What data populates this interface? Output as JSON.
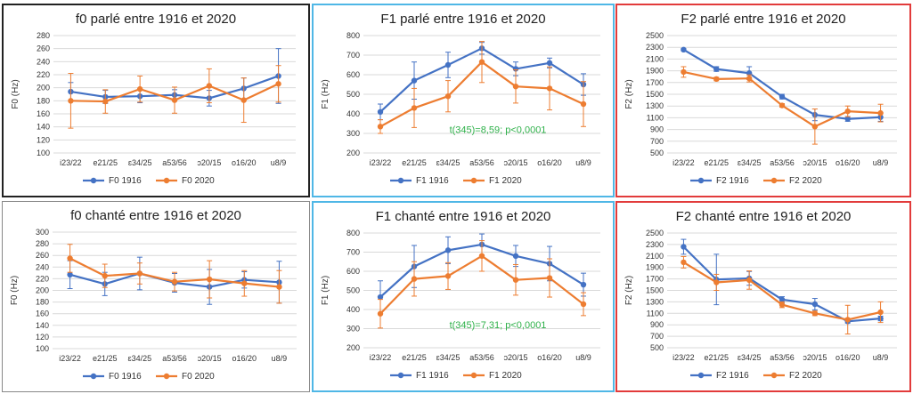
{
  "colors": {
    "series_1916": "#4472c4",
    "series_2020": "#ed7d31",
    "annotation": "#2fb14a",
    "grid": "#d9d9d9"
  },
  "chart_data": [
    {
      "type": "line",
      "title": "f0 parlé entre 1916 et 2020",
      "ylabel": "F0 (Hz)",
      "xlabel": "",
      "ylim": [
        100,
        280
      ],
      "yticks": [
        100,
        120,
        140,
        160,
        180,
        200,
        220,
        240,
        260,
        280
      ],
      "categories": [
        "i23/22",
        "e21/25",
        "ɛ34/25",
        "a53/56",
        "ɔ20/15",
        "o16/20",
        "u8/9"
      ],
      "grid": true,
      "legend": "bottom",
      "series": [
        {
          "name": "F0 1916",
          "values": [
            194,
            186,
            187,
            189,
            184,
            199,
            218
          ],
          "err": [
            14,
            10,
            10,
            8,
            12,
            16,
            42
          ]
        },
        {
          "name": "F0 2020",
          "values": [
            180,
            179,
            198,
            181,
            203,
            181,
            206
          ],
          "err": [
            42,
            18,
            20,
            20,
            26,
            34,
            28
          ]
        }
      ]
    },
    {
      "type": "line",
      "title": "F1 parlé entre 1916 et 2020",
      "ylabel": "F1 (Hz)",
      "xlabel": "",
      "ylim": [
        200,
        800
      ],
      "yticks": [
        200,
        300,
        400,
        500,
        600,
        700,
        800
      ],
      "categories": [
        "i23/22",
        "e21/25",
        "ɛ34/25",
        "a53/56",
        "ɔ20/15",
        "o16/20",
        "u8/9"
      ],
      "annotation": "t(345)=8,59; p<0,0001",
      "grid": true,
      "legend": "bottom",
      "series": [
        {
          "name": "F1 1916",
          "values": [
            410,
            570,
            650,
            735,
            630,
            660,
            550
          ],
          "err": [
            40,
            95,
            65,
            30,
            35,
            25,
            55
          ]
        },
        {
          "name": "F1 2020",
          "values": [
            335,
            430,
            490,
            665,
            540,
            530,
            450
          ],
          "err": [
            35,
            100,
            80,
            105,
            85,
            110,
            115
          ]
        }
      ]
    },
    {
      "type": "line",
      "title": "F2 parlé entre 1916 et 2020",
      "ylabel": "F2 (Hz)",
      "xlabel": "",
      "ylim": [
        500,
        2500
      ],
      "yticks": [
        500,
        700,
        900,
        1100,
        1300,
        1500,
        1700,
        1900,
        2100,
        2300,
        2500
      ],
      "categories": [
        "i23/22",
        "e21/25",
        "ɛ34/25",
        "a53/56",
        "ɔ20/15",
        "o16/20",
        "u8/9"
      ],
      "grid": true,
      "legend": "bottom",
      "series": [
        {
          "name": "F2 1916",
          "values": [
            2260,
            1930,
            1860,
            1460,
            1150,
            1080,
            1110
          ],
          "err": [
            20,
            40,
            110,
            40,
            100,
            40,
            70
          ]
        },
        {
          "name": "F2 2020",
          "values": [
            1880,
            1760,
            1770,
            1310,
            950,
            1210,
            1180
          ],
          "err": [
            90,
            30,
            60,
            30,
            300,
            90,
            150
          ]
        }
      ]
    },
    {
      "type": "line",
      "title": "f0 chanté entre 1916 et 2020",
      "ylabel": "F0 (Hz)",
      "xlabel": "",
      "ylim": [
        100,
        300
      ],
      "yticks": [
        100,
        120,
        140,
        160,
        180,
        200,
        220,
        240,
        260,
        280,
        300
      ],
      "categories": [
        "i23/22",
        "e21/25",
        "ɛ34/25",
        "a53/56",
        "ɔ20/15",
        "o16/20",
        "u8/9"
      ],
      "grid": true,
      "legend": "bottom",
      "series": [
        {
          "name": "F0 1916",
          "values": [
            227,
            211,
            229,
            213,
            206,
            218,
            214
          ],
          "err": [
            24,
            20,
            28,
            16,
            30,
            14,
            36
          ]
        },
        {
          "name": "F0 2020",
          "values": [
            255,
            225,
            229,
            215,
            219,
            212,
            206
          ],
          "err": [
            24,
            20,
            18,
            16,
            32,
            22,
            28
          ]
        }
      ]
    },
    {
      "type": "line",
      "title": "F1 chanté entre 1916 et 2020",
      "ylabel": "F1 (Hz)",
      "xlabel": "",
      "ylim": [
        200,
        800
      ],
      "yticks": [
        200,
        300,
        400,
        500,
        600,
        700,
        800
      ],
      "categories": [
        "i23/22",
        "e21/25",
        "ɛ34/25",
        "a53/56",
        "ɔ20/15",
        "o16/20",
        "u8/9"
      ],
      "annotation": "t(345)=7,31; p<0,0001",
      "grid": true,
      "legend": "bottom",
      "series": [
        {
          "name": "F1 1916",
          "values": [
            465,
            625,
            710,
            740,
            680,
            640,
            530
          ],
          "err": [
            85,
            110,
            70,
            55,
            55,
            90,
            60
          ]
        },
        {
          "name": "F1 2020",
          "values": [
            378,
            560,
            575,
            680,
            555,
            565,
            428
          ],
          "err": [
            75,
            90,
            70,
            80,
            80,
            100,
            60
          ]
        }
      ]
    },
    {
      "type": "line",
      "title": "F2 chanté entre 1916 et 2020",
      "ylabel": "F2 (Hz)",
      "xlabel": "",
      "ylim": [
        500,
        2500
      ],
      "yticks": [
        500,
        700,
        900,
        1100,
        1300,
        1500,
        1700,
        1900,
        2100,
        2300,
        2500
      ],
      "categories": [
        "i23/22",
        "e21/25",
        "ɛ34/25",
        "a53/56",
        "ɔ20/15",
        "o16/20",
        "u8/9"
      ],
      "grid": true,
      "legend": "bottom",
      "series": [
        {
          "name": "F2 1916",
          "values": [
            2260,
            1690,
            1710,
            1340,
            1260,
            960,
            1010
          ],
          "err": [
            130,
            440,
            120,
            50,
            100,
            30,
            40
          ]
        },
        {
          "name": "F2 2020",
          "values": [
            1990,
            1640,
            1680,
            1250,
            1100,
            990,
            1120
          ],
          "err": [
            100,
            140,
            160,
            50,
            40,
            250,
            180
          ]
        }
      ]
    }
  ]
}
